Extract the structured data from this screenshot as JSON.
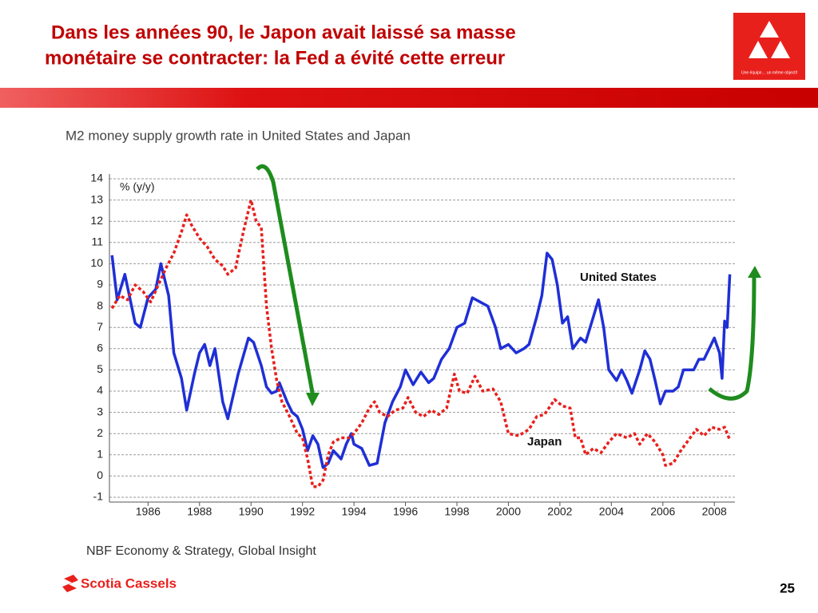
{
  "slide": {
    "title_lines": [
      "Dans les années 90, le Japon avait laissé sa masse",
      "monétaire se contracter: la Fed a évité cette erreur"
    ],
    "badge": "Une équipe… un même objectif",
    "source": "NBF Economy & Strategy, Global Insight",
    "logo": "Scotia Cassels",
    "page": "25"
  },
  "chart_data": {
    "type": "line",
    "title": "M2 money supply growth rate in United States and Japan",
    "y_label": "% (y/y)",
    "xlim": [
      1984.5,
      2008.8
    ],
    "xticks": [
      1986,
      1988,
      1990,
      1992,
      1994,
      1996,
      1998,
      2000,
      2002,
      2004,
      2006,
      2008
    ],
    "ylim": [
      -1,
      14
    ],
    "yticks": [
      -1,
      0,
      1,
      2,
      3,
      4,
      5,
      6,
      7,
      8,
      9,
      10,
      11,
      12,
      13,
      14
    ],
    "grid": true,
    "series": [
      {
        "name": "United States",
        "color": "#1f2fd6",
        "dashed": false,
        "x": [
          1984.6,
          1984.8,
          1985.1,
          1985.5,
          1985.7,
          1986.0,
          1986.3,
          1986.5,
          1986.8,
          1987.0,
          1987.3,
          1987.5,
          1987.8,
          1988.0,
          1988.2,
          1988.4,
          1988.6,
          1988.9,
          1989.1,
          1989.5,
          1989.9,
          1990.1,
          1990.4,
          1990.6,
          1990.8,
          1991.0,
          1991.1,
          1991.4,
          1991.6,
          1991.8,
          1992.0,
          1992.2,
          1992.4,
          1992.6,
          1992.8,
          1993.0,
          1993.2,
          1993.5,
          1993.7,
          1993.9,
          1994.0,
          1994.3,
          1994.6,
          1994.9,
          1995.2,
          1995.5,
          1995.8,
          1996.0,
          1996.3,
          1996.6,
          1996.9,
          1997.1,
          1997.4,
          1997.7,
          1998.0,
          1998.3,
          1998.6,
          1998.9,
          1999.2,
          1999.5,
          1999.7,
          2000.0,
          2000.3,
          2000.6,
          2000.8,
          2001.1,
          2001.3,
          2001.5,
          2001.7,
          2001.9,
          2002.1,
          2002.3,
          2002.5,
          2002.8,
          2003.0,
          2003.3,
          2003.5,
          2003.7,
          2003.9,
          2004.2,
          2004.4,
          2004.6,
          2004.8,
          2005.1,
          2005.3,
          2005.5,
          2005.7,
          2005.9,
          2006.1,
          2006.4,
          2006.6,
          2006.8,
          2007.0,
          2007.2,
          2007.4,
          2007.6,
          2007.8,
          2008.0,
          2008.2,
          2008.3,
          2008.4,
          2008.5,
          2008.6
        ],
        "values": [
          10.4,
          8.3,
          9.5,
          7.2,
          7.0,
          8.4,
          8.8,
          10.0,
          8.5,
          5.8,
          4.6,
          3.1,
          4.8,
          5.8,
          6.2,
          5.2,
          6.0,
          3.5,
          2.7,
          4.8,
          6.5,
          6.3,
          5.2,
          4.2,
          3.9,
          4.0,
          4.4,
          3.5,
          3.0,
          2.8,
          2.2,
          1.2,
          1.9,
          1.5,
          0.4,
          0.6,
          1.2,
          0.8,
          1.5,
          2.0,
          1.5,
          1.3,
          0.5,
          0.6,
          2.5,
          3.5,
          4.2,
          5.0,
          4.3,
          4.9,
          4.4,
          4.6,
          5.5,
          6.0,
          7.0,
          7.2,
          8.4,
          8.2,
          8.0,
          7.0,
          6.0,
          6.2,
          5.8,
          6.0,
          6.2,
          7.5,
          8.5,
          10.5,
          10.2,
          9.0,
          7.2,
          7.5,
          6.0,
          6.5,
          6.3,
          7.5,
          8.3,
          7.0,
          5.0,
          4.5,
          5.0,
          4.5,
          3.9,
          5.0,
          5.9,
          5.5,
          4.5,
          3.4,
          4.0,
          4.0,
          4.2,
          5.0,
          5.0,
          5.0,
          5.5,
          5.5,
          6.0,
          6.5,
          5.8,
          4.6,
          7.3,
          7.0,
          9.5
        ]
      },
      {
        "name": "Japan",
        "color": "#e8201c",
        "dashed": true,
        "x": [
          1984.6,
          1984.9,
          1985.2,
          1985.5,
          1985.8,
          1986.1,
          1986.4,
          1986.7,
          1987.0,
          1987.3,
          1987.5,
          1987.7,
          1988.0,
          1988.3,
          1988.6,
          1988.9,
          1989.1,
          1989.4,
          1989.7,
          1990.0,
          1990.2,
          1990.4,
          1990.6,
          1990.8,
          1991.0,
          1991.2,
          1991.5,
          1991.8,
          1992.0,
          1992.2,
          1992.4,
          1992.6,
          1992.8,
          1993.0,
          1993.2,
          1993.5,
          1993.8,
          1994.0,
          1994.3,
          1994.6,
          1994.8,
          1995.0,
          1995.3,
          1995.6,
          1995.9,
          1996.1,
          1996.4,
          1996.7,
          1997.0,
          1997.3,
          1997.6,
          1997.9,
          1998.1,
          1998.4,
          1998.7,
          1999.0,
          1999.4,
          1999.7,
          2000.0,
          2000.4,
          2000.8,
          2001.1,
          2001.4,
          2001.8,
          2002.1,
          2002.4,
          2002.6,
          2002.8,
          2003.0,
          2003.3,
          2003.6,
          2003.9,
          2004.2,
          2004.6,
          2004.9,
          2005.1,
          2005.4,
          2005.7,
          2006.0,
          2006.1,
          2006.4,
          2006.7,
          2007.0,
          2007.3,
          2007.6,
          2007.9,
          2008.2,
          2008.4,
          2008.6
        ],
        "values": [
          7.9,
          8.5,
          8.3,
          9.0,
          8.7,
          8.2,
          9.0,
          9.8,
          10.5,
          11.5,
          12.3,
          11.8,
          11.2,
          10.8,
          10.2,
          9.9,
          9.5,
          9.8,
          11.5,
          13.0,
          12.0,
          11.7,
          8.0,
          6.0,
          4.5,
          3.5,
          2.8,
          2.0,
          1.8,
          0.8,
          -0.5,
          -0.5,
          -0.2,
          1.0,
          1.6,
          1.8,
          1.8,
          2.0,
          2.5,
          3.2,
          3.5,
          3.0,
          2.8,
          3.1,
          3.2,
          3.7,
          3.0,
          2.8,
          3.1,
          2.9,
          3.2,
          4.8,
          4.0,
          3.9,
          4.7,
          4.0,
          4.1,
          3.5,
          2.0,
          1.9,
          2.2,
          2.8,
          2.9,
          3.6,
          3.3,
          3.2,
          1.8,
          1.8,
          1.0,
          1.3,
          1.1,
          1.6,
          2.0,
          1.8,
          2.0,
          1.5,
          2.0,
          1.6,
          1.0,
          0.5,
          0.6,
          1.2,
          1.7,
          2.2,
          1.9,
          2.3,
          2.2,
          2.3,
          1.7
        ]
      }
    ]
  }
}
